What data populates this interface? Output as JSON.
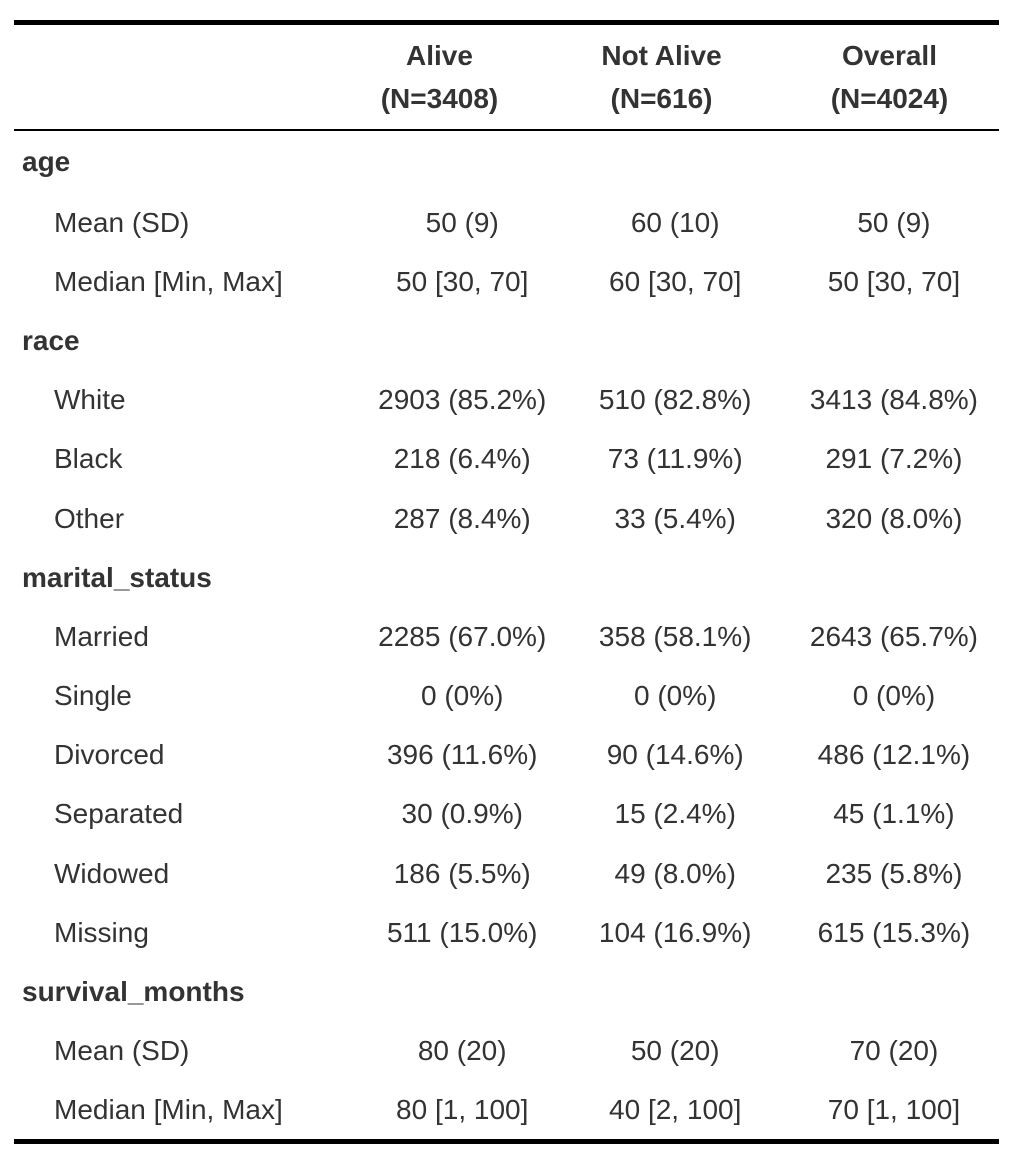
{
  "columns": [
    {
      "name": "Alive",
      "n": "(N=3408)"
    },
    {
      "name": "Not Alive",
      "n": "(N=616)"
    },
    {
      "name": "Overall",
      "n": "(N=4024)"
    }
  ],
  "rows": [
    {
      "label": "age",
      "values": [
        "",
        "",
        ""
      ]
    },
    {
      "label": "Mean (SD)",
      "values": [
        "50 (9)",
        "60 (10)",
        "50 (9)"
      ]
    },
    {
      "label": "Median [Min, Max]",
      "values": [
        "50 [30, 70]",
        "60 [30, 70]",
        "50 [30, 70]"
      ]
    },
    {
      "label": "race",
      "values": [
        "",
        "",
        ""
      ]
    },
    {
      "label": "White",
      "values": [
        "2903 (85.2%)",
        "510 (82.8%)",
        "3413 (84.8%)"
      ]
    },
    {
      "label": "Black",
      "values": [
        "218 (6.4%)",
        "73 (11.9%)",
        "291 (7.2%)"
      ]
    },
    {
      "label": "Other",
      "values": [
        "287 (8.4%)",
        "33 (5.4%)",
        "320 (8.0%)"
      ]
    },
    {
      "label": "marital_status",
      "values": [
        "",
        "",
        ""
      ]
    },
    {
      "label": "Married",
      "values": [
        "2285 (67.0%)",
        "358 (58.1%)",
        "2643 (65.7%)"
      ]
    },
    {
      "label": "Single",
      "values": [
        "0 (0%)",
        "0 (0%)",
        "0 (0%)"
      ]
    },
    {
      "label": "Divorced",
      "values": [
        "396 (11.6%)",
        "90 (14.6%)",
        "486 (12.1%)"
      ]
    },
    {
      "label": "Separated",
      "values": [
        "30 (0.9%)",
        "15 (2.4%)",
        "45 (1.1%)"
      ]
    },
    {
      "label": "Widowed",
      "values": [
        "186 (5.5%)",
        "49 (8.0%)",
        "235 (5.8%)"
      ]
    },
    {
      "label": "Missing",
      "values": [
        "511 (15.0%)",
        "104 (16.9%)",
        "615 (15.3%)"
      ]
    },
    {
      "label": "survival_months",
      "values": [
        "",
        "",
        ""
      ]
    },
    {
      "label": "Mean (SD)",
      "values": [
        "80 (20)",
        "50 (20)",
        "70 (20)"
      ]
    },
    {
      "label": "Median [Min, Max]",
      "values": [
        "80 [1, 100]",
        "40 [2, 100]",
        "70 [1, 100]"
      ]
    }
  ]
}
